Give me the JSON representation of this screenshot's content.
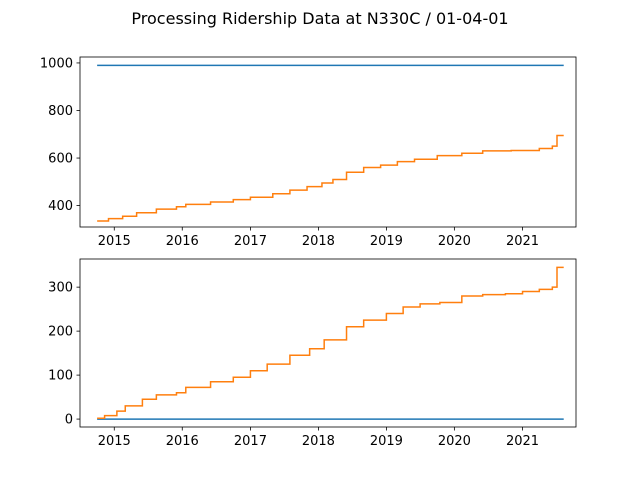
{
  "figure": {
    "title": "Processing Ridership Data at N330C / 01-04-01"
  },
  "colors": {
    "series_a": "#1f77b4",
    "series_b": "#ff7f0e",
    "axes": "#000000",
    "background": "#ffffff"
  },
  "chart_data": [
    {
      "type": "line",
      "grid": false,
      "xlim": [
        "2014-07-01",
        "2021-10-15"
      ],
      "ylim": [
        310,
        1025
      ],
      "xticks": [
        "2015-01-01",
        "2016-01-01",
        "2017-01-01",
        "2018-01-01",
        "2019-01-01",
        "2020-01-01",
        "2021-01-01"
      ],
      "xtick_labels": [
        "2015",
        "2016",
        "2017",
        "2018",
        "2019",
        "2020",
        "2021"
      ],
      "yticks": [
        400,
        600,
        800,
        1000
      ],
      "ytick_labels": [
        "400",
        "600",
        "800",
        "1000"
      ],
      "series": [
        {
          "color": "#1f77b4",
          "step": false,
          "x": [
            "2014-10-01",
            "2021-08-10"
          ],
          "y": [
            990,
            990
          ]
        },
        {
          "color": "#ff7f0e",
          "step": true,
          "x": [
            "2014-10-01",
            "2014-12-01",
            "2015-02-15",
            "2015-05-01",
            "2015-08-15",
            "2015-12-01",
            "2016-01-20",
            "2016-06-01",
            "2016-10-01",
            "2017-01-01",
            "2017-05-01",
            "2017-08-01",
            "2017-11-01",
            "2018-01-20",
            "2018-03-20",
            "2018-06-01",
            "2018-09-01",
            "2018-12-01",
            "2019-03-01",
            "2019-06-01",
            "2019-10-01",
            "2020-02-10",
            "2020-06-01",
            "2020-11-01",
            "2021-04-01",
            "2021-06-10",
            "2021-07-05",
            "2021-08-10"
          ],
          "y": [
            335,
            345,
            355,
            370,
            385,
            395,
            405,
            415,
            425,
            435,
            450,
            465,
            480,
            495,
            510,
            540,
            560,
            570,
            585,
            595,
            610,
            620,
            630,
            632,
            640,
            650,
            695,
            695
          ]
        }
      ]
    },
    {
      "type": "line",
      "grid": false,
      "xlim": [
        "2014-07-01",
        "2021-10-15"
      ],
      "ylim": [
        -18,
        364
      ],
      "xticks": [
        "2015-01-01",
        "2016-01-01",
        "2017-01-01",
        "2018-01-01",
        "2019-01-01",
        "2020-01-01",
        "2021-01-01"
      ],
      "xtick_labels": [
        "2015",
        "2016",
        "2017",
        "2018",
        "2019",
        "2020",
        "2021"
      ],
      "yticks": [
        0,
        100,
        200,
        300
      ],
      "ytick_labels": [
        "0",
        "100",
        "200",
        "300"
      ],
      "series": [
        {
          "color": "#1f77b4",
          "step": false,
          "x": [
            "2014-10-01",
            "2021-08-10"
          ],
          "y": [
            0,
            0
          ]
        },
        {
          "color": "#ff7f0e",
          "step": true,
          "x": [
            "2014-10-01",
            "2014-11-10",
            "2015-01-15",
            "2015-03-01",
            "2015-06-01",
            "2015-08-15",
            "2015-12-01",
            "2016-01-20",
            "2016-06-01",
            "2016-10-01",
            "2017-01-01",
            "2017-04-01",
            "2017-08-01",
            "2017-11-15",
            "2018-02-01",
            "2018-06-01",
            "2018-09-01",
            "2019-01-01",
            "2019-04-01",
            "2019-07-01",
            "2019-10-15",
            "2020-02-10",
            "2020-06-01",
            "2020-10-01",
            "2021-01-01",
            "2021-04-01",
            "2021-06-10",
            "2021-07-05",
            "2021-08-10"
          ],
          "y": [
            2,
            8,
            18,
            30,
            45,
            55,
            60,
            72,
            85,
            95,
            110,
            125,
            145,
            160,
            180,
            210,
            225,
            240,
            255,
            262,
            265,
            280,
            283,
            285,
            290,
            295,
            300,
            345,
            345
          ]
        }
      ]
    }
  ]
}
